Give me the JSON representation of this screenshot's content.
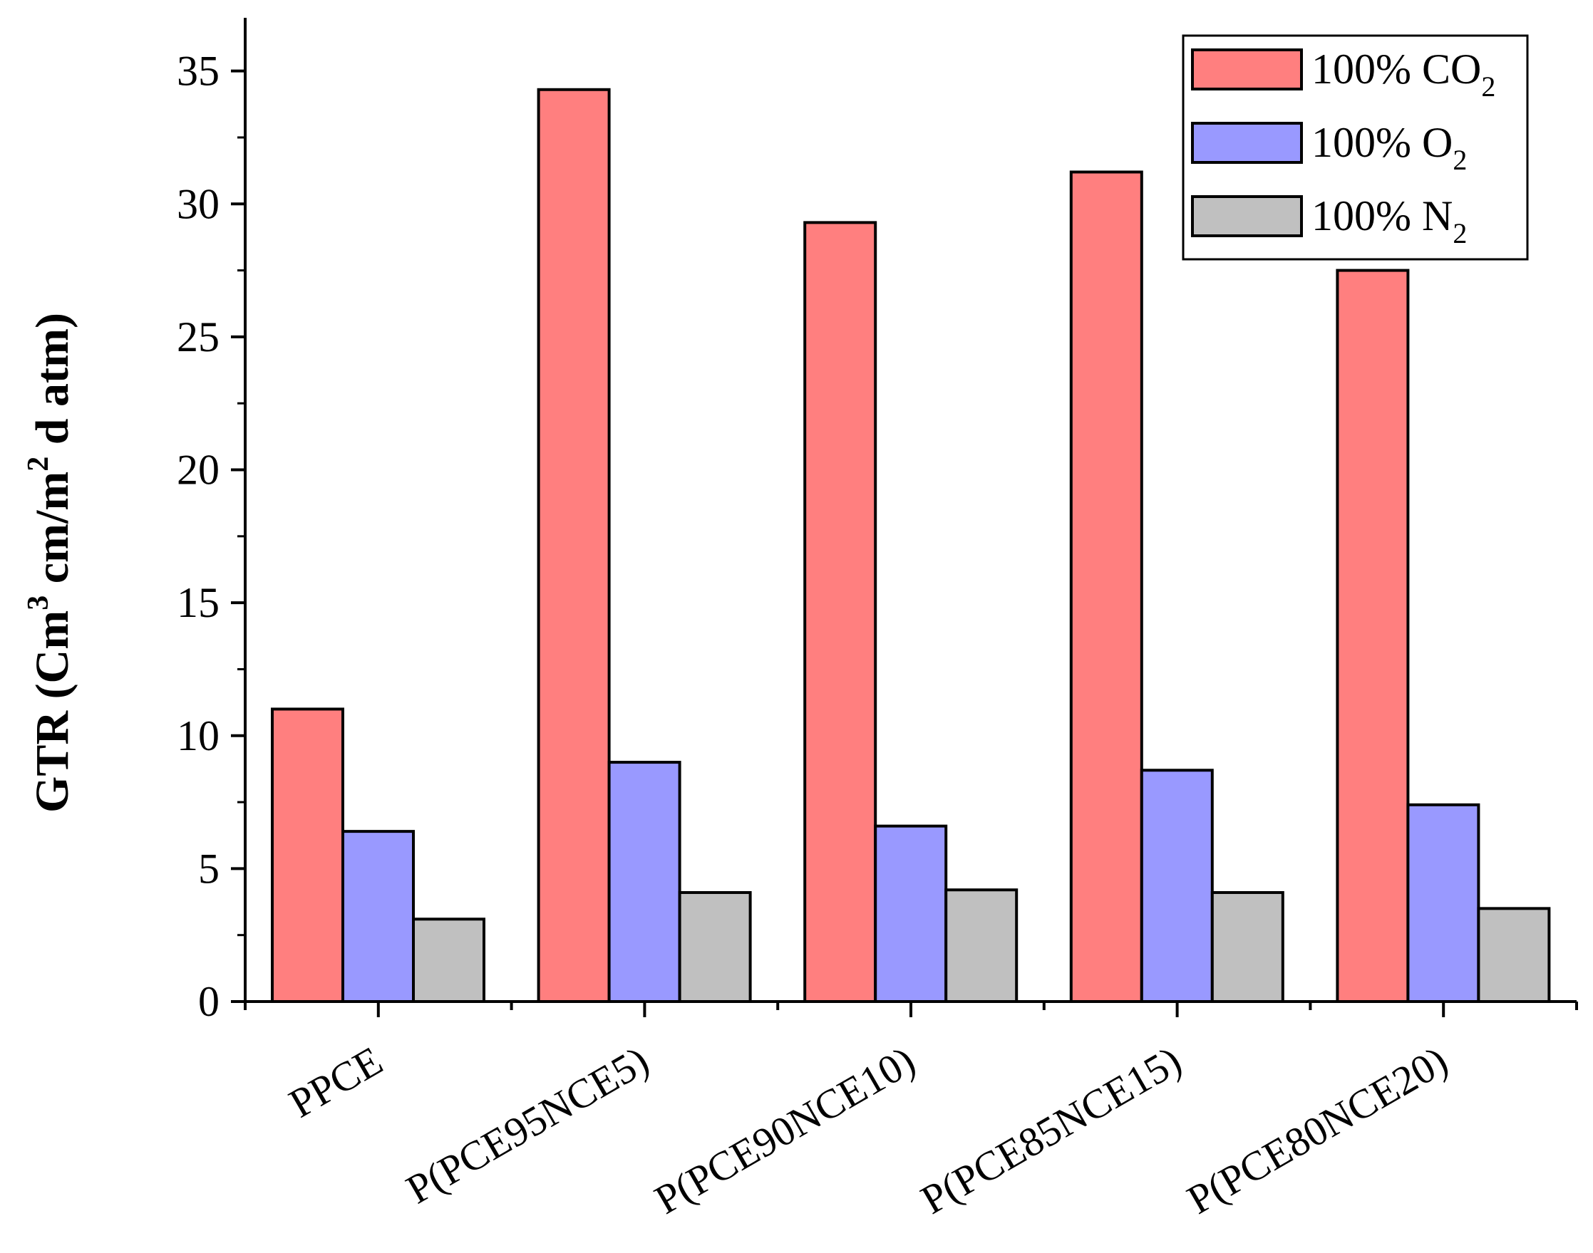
{
  "chart_data": {
    "type": "bar",
    "categories": [
      "PPCE",
      "P(PCE95NCE5)",
      "P(PCE90NCE10)",
      "P(PCE85NCE15)",
      "P(PCE80NCE20)"
    ],
    "series": [
      {
        "name": "100% CO",
        "subscript": "2",
        "color": "#ff7f7f",
        "values": [
          11.0,
          34.3,
          29.3,
          31.2,
          27.5
        ]
      },
      {
        "name": "100% O",
        "subscript": "2",
        "color": "#9999ff",
        "values": [
          6.4,
          9.0,
          6.6,
          8.7,
          7.4
        ]
      },
      {
        "name": "100% N",
        "subscript": "2",
        "color": "#c0c0c0",
        "values": [
          3.1,
          4.1,
          4.2,
          4.1,
          3.5
        ]
      }
    ],
    "ylabel": {
      "prefix": "GTR (Cm",
      "sup1": "3",
      "middle": " cm/m",
      "sup2": "2",
      "suffix": " d atm)"
    },
    "xlabel": "",
    "ylim": [
      0,
      37
    ],
    "yticks": [
      0,
      5,
      10,
      15,
      20,
      25,
      30,
      35
    ],
    "legend_position": "top-right",
    "grid": false
  }
}
